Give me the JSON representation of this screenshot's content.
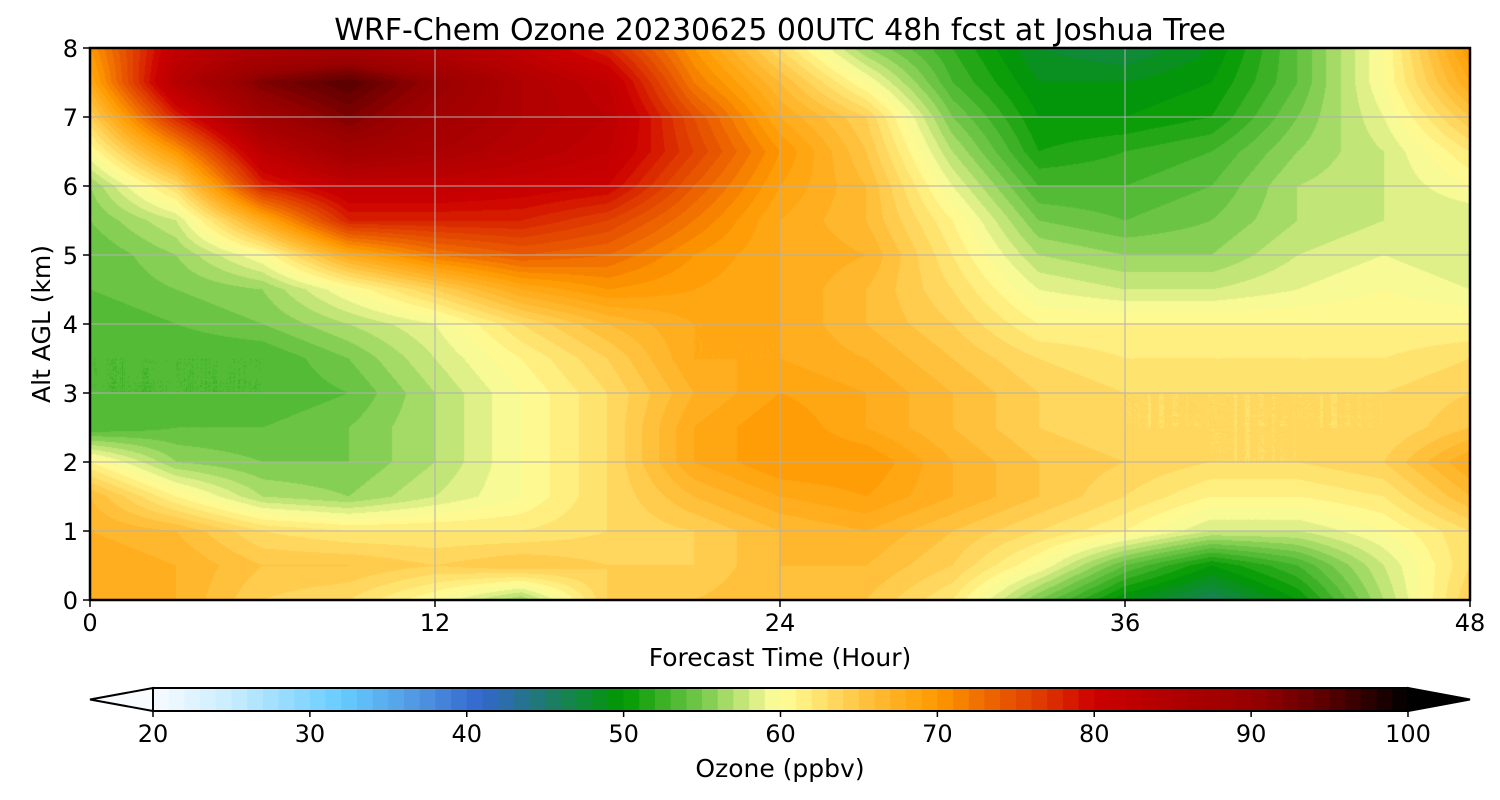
{
  "chart_data": {
    "type": "heatmap",
    "title": "WRF-Chem Ozone  20230625 00UTC 48h fcst at Joshua Tree",
    "xlabel": "Forecast Time (Hour)",
    "ylabel": "Alt AGL (km)",
    "xlim": [
      0,
      48
    ],
    "ylim": [
      0,
      8
    ],
    "xticks": [
      "0",
      "12",
      "24",
      "36",
      "48"
    ],
    "xtick_values": [
      0,
      12,
      24,
      36,
      48
    ],
    "yticks": [
      "0",
      "1",
      "2",
      "3",
      "4",
      "5",
      "6",
      "7",
      "8"
    ],
    "ytick_values": [
      0,
      1,
      2,
      3,
      4,
      5,
      6,
      7,
      8
    ],
    "grid": true,
    "x": [
      0,
      3,
      6,
      9,
      12,
      15,
      18,
      21,
      24,
      27,
      30,
      33,
      36,
      39,
      42,
      45,
      48
    ],
    "y": [
      0,
      0.5,
      1,
      1.5,
      2,
      2.5,
      3,
      3.5,
      4,
      4.5,
      5,
      5.5,
      6,
      6.5,
      7,
      7.5,
      8
    ],
    "z": [
      [
        68,
        67,
        64,
        63,
        60,
        56,
        64,
        65,
        66,
        65,
        62,
        55,
        49,
        46,
        50,
        57,
        64
      ],
      [
        68,
        67,
        65,
        65,
        64,
        65,
        64,
        64,
        66,
        66,
        64,
        60,
        54,
        50,
        53,
        58,
        63
      ],
      [
        67,
        66,
        63,
        62,
        62,
        62,
        63,
        64,
        66,
        67,
        65,
        63,
        61,
        58,
        58,
        60,
        63
      ],
      [
        66,
        61,
        57,
        56,
        58,
        60,
        63,
        66,
        68,
        69,
        67,
        65,
        63,
        61,
        61,
        62,
        66
      ],
      [
        61,
        56,
        55,
        55,
        57,
        60,
        63,
        68,
        70,
        70,
        67,
        65,
        64,
        63,
        63,
        64,
        68
      ],
      [
        53,
        54,
        54,
        55,
        57,
        60,
        63,
        68,
        70,
        68,
        66,
        64,
        63,
        63,
        63,
        63,
        65
      ],
      [
        53,
        53,
        53,
        54,
        57,
        60,
        63,
        67,
        69,
        68,
        66,
        64,
        63,
        63,
        63,
        63,
        64
      ],
      [
        53,
        53,
        53,
        55,
        58,
        61,
        64,
        68,
        68,
        67,
        65,
        63,
        62,
        62,
        62,
        62,
        63
      ],
      [
        53,
        54,
        55,
        57,
        59,
        63,
        66,
        68,
        68,
        66,
        64,
        61,
        61,
        61,
        61,
        61,
        61
      ],
      [
        54,
        55,
        56,
        60,
        64,
        68,
        70,
        69,
        68,
        66,
        63,
        59,
        58,
        58,
        59,
        60,
        59
      ],
      [
        54,
        56,
        60,
        68,
        72,
        74,
        73,
        70,
        68,
        67,
        62,
        57,
        56,
        56,
        58,
        59,
        58
      ],
      [
        55,
        58,
        68,
        78,
        78,
        78,
        76,
        72,
        68,
        66,
        61,
        55,
        54,
        55,
        57,
        58,
        58
      ],
      [
        56,
        63,
        78,
        82,
        82,
        81,
        80,
        74,
        69,
        66,
        59,
        53,
        53,
        54,
        57,
        58,
        60
      ],
      [
        60,
        70,
        83,
        88,
        86,
        84,
        82,
        76,
        70,
        65,
        57,
        51,
        52,
        53,
        56,
        58,
        62
      ],
      [
        64,
        78,
        88,
        92,
        88,
        85,
        83,
        75,
        68,
        64,
        55,
        50,
        50,
        51,
        55,
        59,
        65
      ],
      [
        68,
        84,
        92,
        95,
        90,
        85,
        82,
        72,
        66,
        60,
        53,
        49,
        49,
        50,
        54,
        60,
        68
      ],
      [
        70,
        82,
        85,
        86,
        84,
        82,
        78,
        70,
        63,
        56,
        52,
        48,
        47,
        49,
        54,
        60,
        70
      ]
    ],
    "colorbar": {
      "label": "Ozone  (ppbv)",
      "range": [
        20,
        100
      ],
      "step": 1,
      "extend": "both",
      "ticks": [
        "20",
        "30",
        "40",
        "50",
        "60",
        "70",
        "80",
        "90",
        "100"
      ],
      "tick_values": [
        20,
        30,
        40,
        50,
        60,
        70,
        80,
        90,
        100
      ],
      "colormap": [
        [
          20,
          "#f8fcff"
        ],
        [
          25,
          "#c8ecff"
        ],
        [
          32,
          "#66ccff"
        ],
        [
          36,
          "#55a0e6"
        ],
        [
          41,
          "#3366cc"
        ],
        [
          45,
          "#1e7b6e"
        ],
        [
          50,
          "#009900"
        ],
        [
          55,
          "#77c94c"
        ],
        [
          59,
          "#eef590"
        ],
        [
          60,
          "#ffff99"
        ],
        [
          63,
          "#ffdd66"
        ],
        [
          66,
          "#ffbb33"
        ],
        [
          70,
          "#ff9900"
        ],
        [
          73,
          "#ee6a00"
        ],
        [
          77,
          "#dd3300"
        ],
        [
          80,
          "#cc0000"
        ],
        [
          86,
          "#aa0000"
        ],
        [
          90,
          "#990000"
        ],
        [
          94,
          "#660000"
        ],
        [
          100,
          "#000000"
        ]
      ]
    }
  }
}
